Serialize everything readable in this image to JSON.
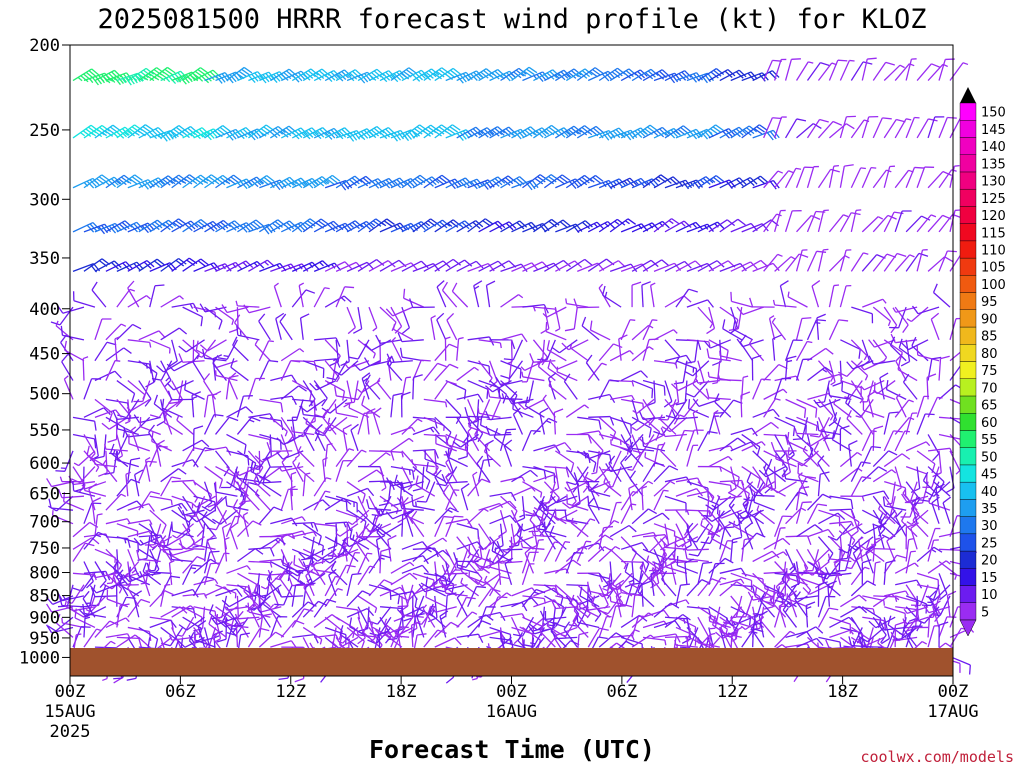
{
  "chart_data": {
    "type": "wind_barb_time_height",
    "title": "2025081500 HRRR forecast wind profile (kt) for KLOZ",
    "xlabel": "Forecast Time (UTC)",
    "ylabel": "",
    "credit": "coolwx.com/models",
    "units": "kt",
    "x_ticks": [
      {
        "hour": 0,
        "label": "00Z",
        "sub1": "15AUG",
        "sub2": "2025"
      },
      {
        "hour": 6,
        "label": "06Z",
        "sub1": "",
        "sub2": ""
      },
      {
        "hour": 12,
        "label": "12Z",
        "sub1": "",
        "sub2": ""
      },
      {
        "hour": 18,
        "label": "18Z",
        "sub1": "",
        "sub2": ""
      },
      {
        "hour": 24,
        "label": "00Z",
        "sub1": "16AUG",
        "sub2": ""
      },
      {
        "hour": 30,
        "label": "06Z",
        "sub1": "",
        "sub2": ""
      },
      {
        "hour": 36,
        "label": "12Z",
        "sub1": "",
        "sub2": ""
      },
      {
        "hour": 42,
        "label": "18Z",
        "sub1": "",
        "sub2": ""
      },
      {
        "hour": 48,
        "label": "00Z",
        "sub1": "17AUG",
        "sub2": ""
      }
    ],
    "xlim_hours": [
      0,
      48
    ],
    "y_ticks": [
      200,
      250,
      300,
      350,
      400,
      450,
      500,
      550,
      600,
      650,
      700,
      750,
      800,
      850,
      900,
      950,
      1000
    ],
    "ylim_hpa": [
      200,
      1050
    ],
    "y_scale": "log",
    "surface_color": "#a0522d",
    "colorbar": {
      "levels": [
        5,
        10,
        15,
        20,
        25,
        30,
        35,
        40,
        45,
        50,
        55,
        60,
        65,
        70,
        75,
        80,
        85,
        90,
        95,
        100,
        105,
        110,
        115,
        120,
        125,
        130,
        135,
        140,
        145,
        150
      ],
      "colors": [
        "#9a2cf2",
        "#6c1cf0",
        "#3312e8",
        "#1c2cd4",
        "#1e52ea",
        "#1e78ee",
        "#1e9ef0",
        "#18c0f0",
        "#14e4e0",
        "#18f0b0",
        "#20f070",
        "#30e030",
        "#70e020",
        "#b8f020",
        "#f0f020",
        "#f0d820",
        "#f0b81c",
        "#f09818",
        "#f07a14",
        "#f05a10",
        "#f03a10",
        "#f01c10",
        "#f00820",
        "#f00040",
        "#f00060",
        "#f00080",
        "#f000a0",
        "#f000c0",
        "#f000e0",
        "#ff00ff"
      ]
    },
    "wind_profile": [
      {
        "level_hpa": 215,
        "speed_kt": [
          55,
          40,
          40,
          35,
          30,
          20,
          10
        ]
      },
      {
        "level_hpa": 260,
        "speed_kt": [
          45,
          40,
          40,
          35,
          35,
          30,
          10
        ]
      },
      {
        "level_hpa": 295,
        "speed_kt": [
          35,
          35,
          30,
          30,
          25,
          20,
          10
        ]
      },
      {
        "level_hpa": 330,
        "speed_kt": [
          30,
          30,
          25,
          20,
          15,
          10,
          10
        ]
      },
      {
        "level_hpa": 355,
        "speed_kt": [
          20,
          15,
          10,
          10,
          10,
          10,
          10
        ]
      }
    ]
  }
}
